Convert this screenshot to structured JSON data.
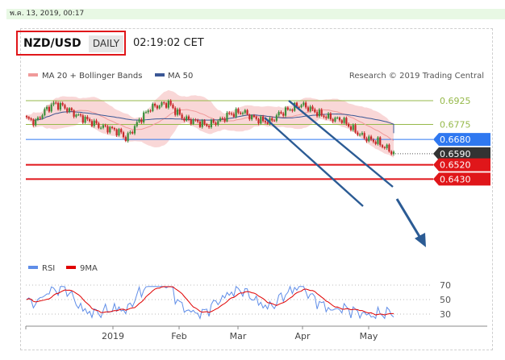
{
  "datebar": {
    "text": "พ.ค. 13, 2019, 00:17"
  },
  "header": {
    "symbol": "NZD/USD",
    "timeframe": "DAILY",
    "time": "02:19:02 CET"
  },
  "legend": {
    "ma20": "MA 20 + Bollinger Bands",
    "ma50": "MA 50",
    "credit": "Research © 2019 Trading Central"
  },
  "rsi_legend": {
    "rsi": "RSI",
    "ma9": "9MA"
  },
  "colors": {
    "resistance": "#e0161a",
    "current": "#333333",
    "pivot": "#2f78f0",
    "green": "#96b94a",
    "bollinger": "#f7c9c9",
    "ma50": "#3a5795",
    "up": "#3b8f3b",
    "down": "#c62828",
    "arrow": "#2b5b94",
    "rsi": "#5f8de8",
    "rsi_ma": "#e00000"
  },
  "chart_data": {
    "type": "candlestick",
    "instrument": "NZD/USD",
    "timeframe": "DAILY",
    "x_labels": [
      "2019",
      "Feb",
      "Mar",
      "Apr",
      "May"
    ],
    "y_range": [
      0.64,
      0.7
    ],
    "levels": [
      {
        "value": 0.6925,
        "label": "0.6925",
        "style": "green"
      },
      {
        "value": 0.6775,
        "label": "0.6775",
        "style": "green"
      },
      {
        "value": 0.668,
        "label": "0.6680",
        "style": "pivot"
      },
      {
        "value": 0.659,
        "label": "0.6590",
        "style": "current"
      },
      {
        "value": 0.652,
        "label": "0.6520",
        "style": "resistance"
      },
      {
        "value": 0.643,
        "label": "0.6430",
        "style": "resistance"
      }
    ],
    "rsi": {
      "levels": [
        70,
        50,
        30
      ],
      "labels": [
        "70",
        "50",
        "30"
      ]
    }
  }
}
